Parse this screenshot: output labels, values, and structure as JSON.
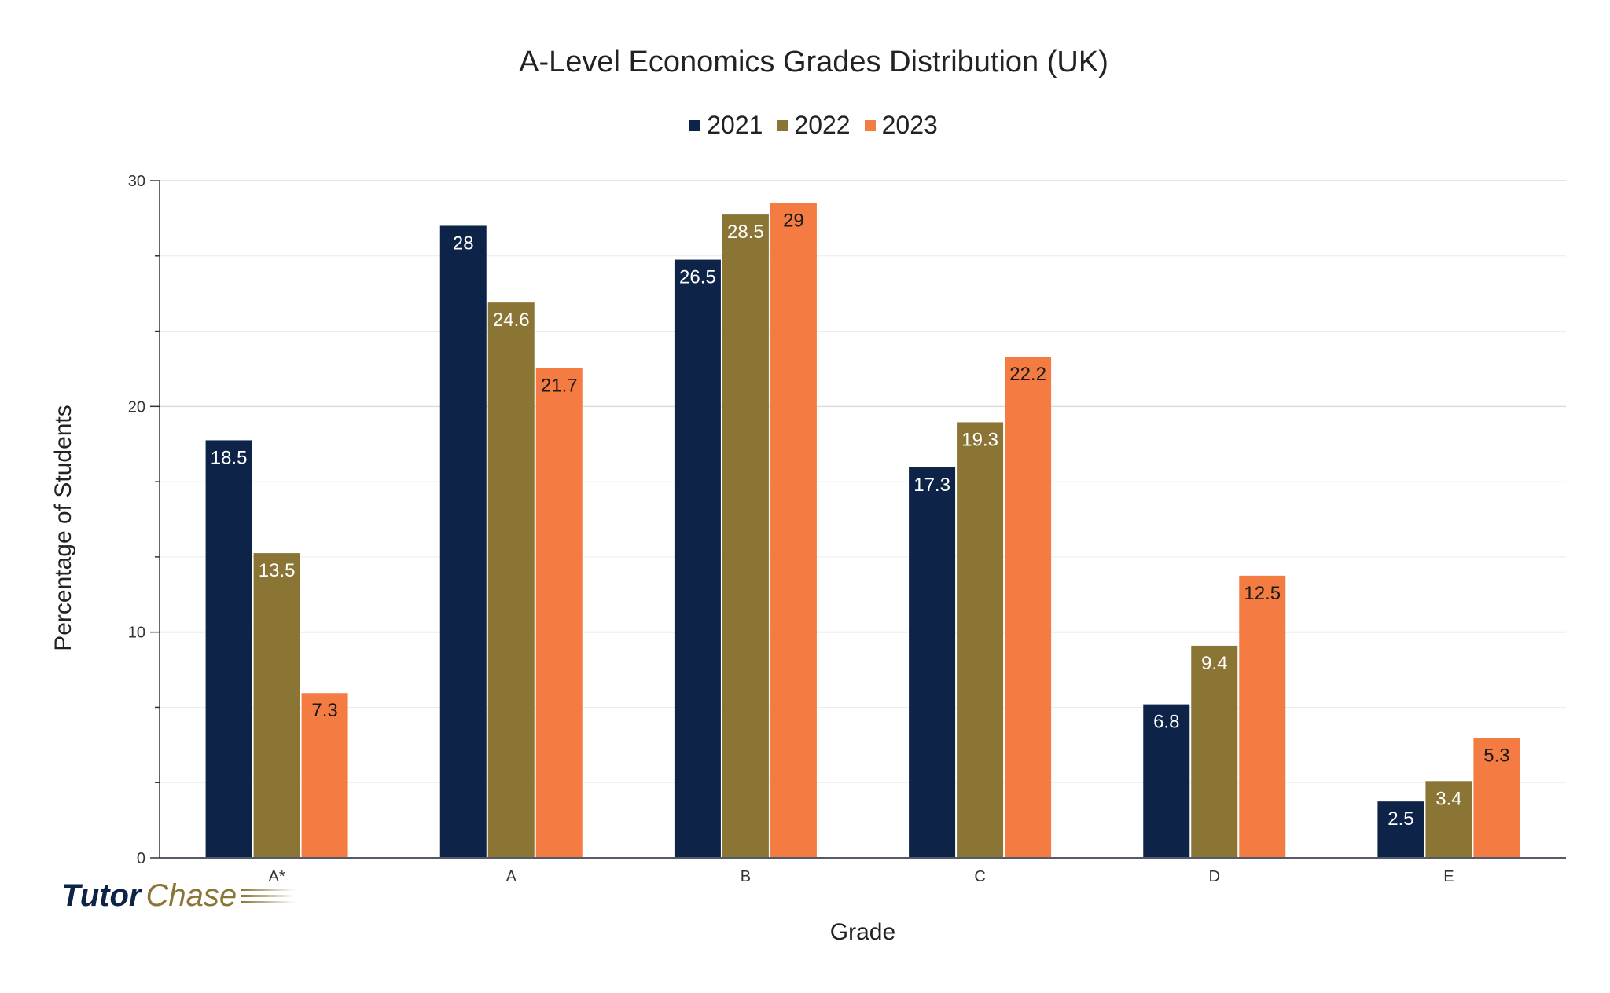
{
  "chart_data": {
    "type": "bar",
    "title": "A-Level Economics Grades Distribution (UK)",
    "xlabel": "Grade",
    "ylabel": "Percentage of Students",
    "categories": [
      "A*",
      "A",
      "B",
      "C",
      "D",
      "E"
    ],
    "series": [
      {
        "name": "2021",
        "color": "#0d2347",
        "values": [
          18.5,
          28,
          26.5,
          17.3,
          6.8,
          2.5
        ]
      },
      {
        "name": "2022",
        "color": "#8b7535",
        "values": [
          13.5,
          24.6,
          28.5,
          19.3,
          9.4,
          3.4
        ]
      },
      {
        "name": "2023",
        "color": "#f47c42",
        "values": [
          7.3,
          21.7,
          29,
          22.2,
          12.5,
          5.3
        ]
      }
    ],
    "ylim": [
      0,
      30
    ],
    "yticks": [
      "0",
      "10",
      "20",
      "30"
    ],
    "grid": true,
    "legend_position": "top"
  },
  "logo": {
    "part1": "Tutor",
    "part2": "Chase"
  }
}
